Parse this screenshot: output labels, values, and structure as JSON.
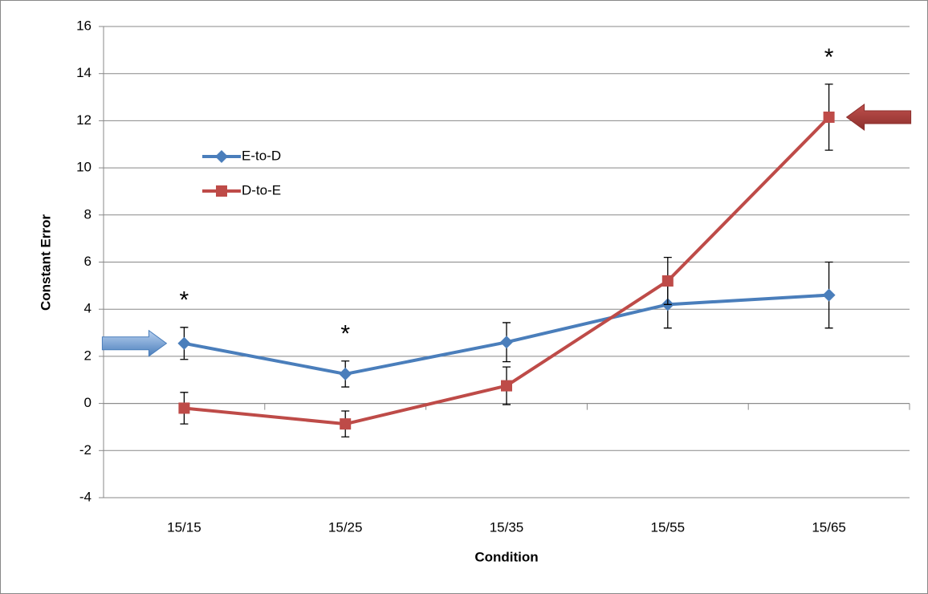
{
  "chart_data": {
    "type": "line",
    "x_label": "Condition",
    "y_label": "Constant Error",
    "categories": [
      "15/15",
      "15/25",
      "15/35",
      "15/55",
      "15/65"
    ],
    "series": [
      {
        "name": "E-to-D",
        "color": "#4a7ebb",
        "marker": "diamond",
        "values": [
          2.55,
          1.25,
          2.6,
          4.2,
          4.6
        ],
        "errors": [
          0.68,
          0.55,
          0.83,
          1.0,
          1.4
        ]
      },
      {
        "name": "D-to-E",
        "color": "#be4b48",
        "marker": "square",
        "values": [
          -0.2,
          -0.87,
          0.75,
          5.2,
          12.15
        ],
        "errors": [
          0.67,
          0.55,
          0.8,
          1.0,
          1.4
        ]
      }
    ],
    "ylim": [
      -4,
      16
    ],
    "yticks": [
      -4,
      -2,
      0,
      2,
      4,
      6,
      8,
      10,
      12,
      14,
      16
    ],
    "grid": true,
    "legend": "upper left",
    "annotations": [
      {
        "text": "*",
        "category": "15/15"
      },
      {
        "text": "*",
        "category": "15/25"
      },
      {
        "text": "*",
        "category": "15/65"
      }
    ]
  }
}
